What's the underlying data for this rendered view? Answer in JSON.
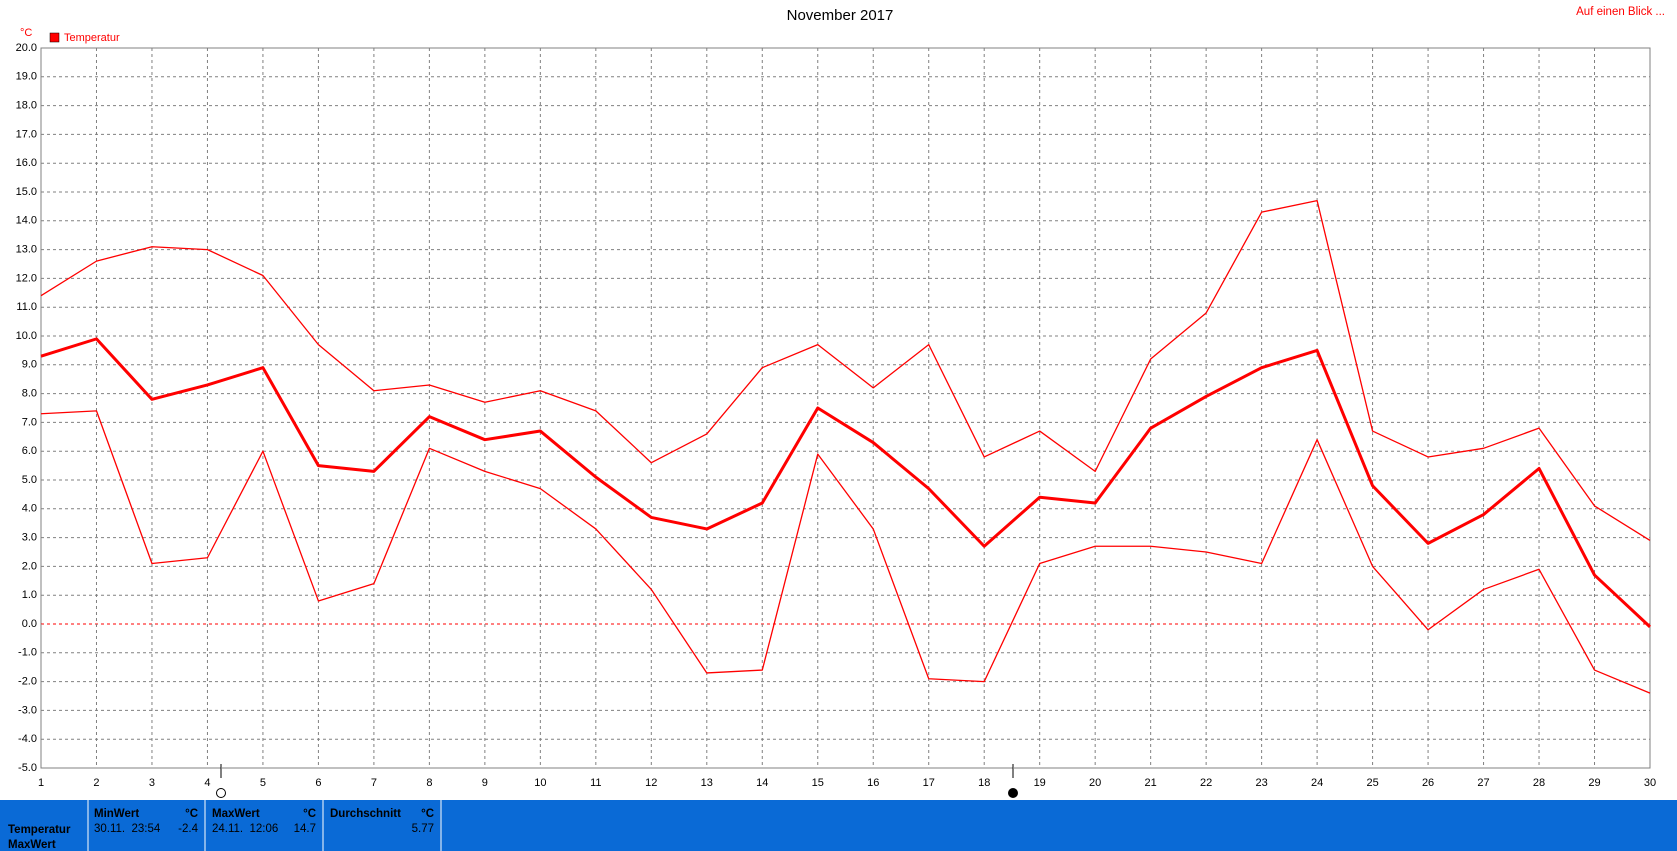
{
  "chart_data": {
    "type": "line",
    "title": "November 2017",
    "y_unit": "°C",
    "legend": "Temperatur",
    "link": "Auf einen Blick ...",
    "color": "#ff0000",
    "grid": true,
    "x": [
      1,
      2,
      3,
      4,
      5,
      6,
      7,
      8,
      9,
      10,
      11,
      12,
      13,
      14,
      15,
      16,
      17,
      18,
      19,
      20,
      21,
      22,
      23,
      24,
      25,
      26,
      27,
      28,
      29,
      30
    ],
    "xlim": [
      1,
      30
    ],
    "xticks": [
      1,
      2,
      3,
      4,
      5,
      6,
      7,
      8,
      9,
      10,
      11,
      12,
      13,
      14,
      15,
      16,
      17,
      18,
      19,
      20,
      21,
      22,
      23,
      24,
      25,
      26,
      27,
      28,
      29,
      30
    ],
    "ylim": [
      -5,
      20
    ],
    "yticks": [
      {
        "value": 20,
        "label": "20.0"
      },
      {
        "value": 19,
        "label": "19.0"
      },
      {
        "value": 18,
        "label": "18.0"
      },
      {
        "value": 17,
        "label": "17.0"
      },
      {
        "value": 16,
        "label": "16.0"
      },
      {
        "value": 15,
        "label": "15.0"
      },
      {
        "value": 14,
        "label": "14.0"
      },
      {
        "value": 13,
        "label": "13.0"
      },
      {
        "value": 12,
        "label": "12.0"
      },
      {
        "value": 11,
        "label": "11.0"
      },
      {
        "value": 10,
        "label": "10.0"
      },
      {
        "value": 9,
        "label": "9.0"
      },
      {
        "value": 8,
        "label": "8.0"
      },
      {
        "value": 7,
        "label": "7.0"
      },
      {
        "value": 6,
        "label": "6.0"
      },
      {
        "value": 5,
        "label": "5.0"
      },
      {
        "value": 4,
        "label": "4.0"
      },
      {
        "value": 3,
        "label": "3.0"
      },
      {
        "value": 2,
        "label": "2.0"
      },
      {
        "value": 1,
        "label": "1.0"
      },
      {
        "value": 0,
        "label": "0.0"
      },
      {
        "value": -1,
        "label": "-1.0"
      },
      {
        "value": -2,
        "label": "-2.0"
      },
      {
        "value": -3,
        "label": "-3.0"
      },
      {
        "value": -4,
        "label": "-4.0"
      },
      {
        "value": -5,
        "label": "-5.0"
      }
    ],
    "series": [
      {
        "color": "#ff0000",
        "width": 1.3,
        "values": [
          11.4,
          12.6,
          13.1,
          13.0,
          12.1,
          9.7,
          8.1,
          8.3,
          7.7,
          8.1,
          7.4,
          5.6,
          6.6,
          8.9,
          9.7,
          8.2,
          9.7,
          5.8,
          6.7,
          5.3,
          9.2,
          10.8,
          14.3,
          14.7,
          6.7,
          5.8,
          6.1,
          6.8,
          4.1,
          2.9
        ]
      },
      {
        "color": "#ff0000",
        "width": 3,
        "values": [
          9.3,
          9.9,
          7.8,
          8.3,
          8.9,
          5.5,
          5.3,
          7.2,
          6.4,
          6.7,
          5.1,
          3.7,
          3.3,
          4.2,
          7.5,
          6.3,
          4.7,
          2.7,
          4.4,
          4.2,
          6.8,
          7.9,
          8.9,
          9.5,
          4.8,
          2.8,
          3.8,
          5.4,
          1.7,
          -0.1
        ]
      },
      {
        "color": "#ff0000",
        "width": 1.3,
        "values": [
          7.3,
          7.4,
          2.1,
          2.3,
          6.0,
          0.8,
          1.4,
          6.1,
          5.3,
          4.7,
          3.3,
          1.2,
          -1.7,
          -1.6,
          5.9,
          3.3,
          -1.9,
          -2.0,
          2.1,
          2.7,
          2.7,
          2.5,
          2.1,
          6.4,
          2.0,
          -0.2,
          1.2,
          1.9,
          -1.6,
          -2.4
        ]
      }
    ]
  },
  "stats": {
    "headers": [
      "MinWert",
      "°C",
      "MaxWert",
      "°C",
      "Durchschnitt",
      "°C"
    ],
    "rows": [
      "Temperatur",
      "MaxWert"
    ],
    "min_time": "30.11.  23:54",
    "min_value": "-2.4",
    "max_time": "24.11.  12:06",
    "max_value": "14.7",
    "avg_value": "5.77"
  }
}
